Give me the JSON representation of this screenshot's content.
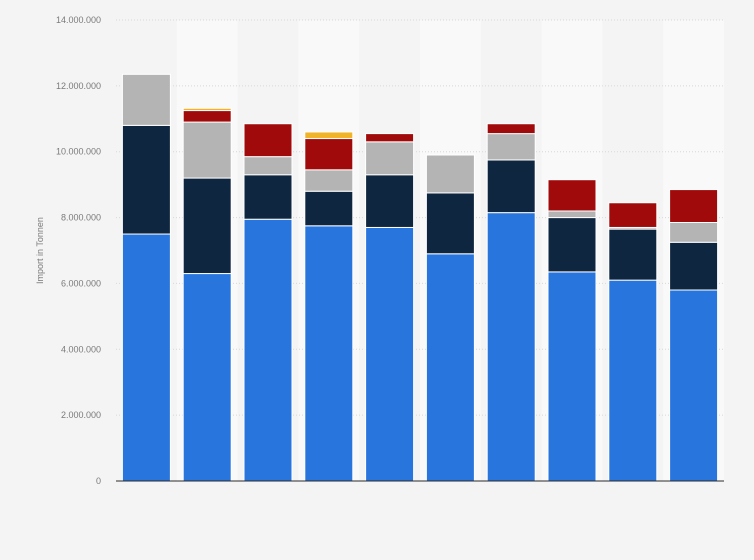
{
  "chart_data": {
    "type": "bar",
    "stacked": true,
    "title": "",
    "xlabel": "",
    "ylabel": "Import in Tonnen",
    "ylim": [
      0,
      14000000
    ],
    "yticks": [
      0,
      2000000,
      4000000,
      6000000,
      8000000,
      10000000,
      12000000,
      14000000
    ],
    "ytick_labels": [
      "0",
      "2.000.000",
      "4.000.000",
      "6.000.000",
      "8.000.000",
      "10.000.000",
      "12.000.000",
      "14.000.000"
    ],
    "grid": true,
    "categories": [
      "",
      "",
      "",
      "",
      "",
      "",
      "",
      "",
      "",
      ""
    ],
    "series": [
      {
        "color": "#2876dd",
        "values": [
          7500000,
          6300000,
          7950000,
          7750000,
          7700000,
          6900000,
          8150000,
          6350000,
          6100000,
          5800000
        ]
      },
      {
        "color": "#0f2640",
        "values": [
          3300000,
          2900000,
          1350000,
          1050000,
          1600000,
          1850000,
          1600000,
          1650000,
          1550000,
          1450000
        ]
      },
      {
        "color": "#b4b4b4",
        "values": [
          1550000,
          1700000,
          550000,
          650000,
          1000000,
          1150000,
          800000,
          200000,
          50000,
          600000
        ]
      },
      {
        "color": "#a10a0a",
        "values": [
          0,
          350000,
          1000000,
          950000,
          250000,
          0,
          300000,
          950000,
          750000,
          1000000
        ]
      },
      {
        "color": "#f0b429",
        "values": [
          0,
          70000,
          0,
          200000,
          0,
          0,
          0,
          0,
          0,
          0
        ]
      }
    ]
  }
}
